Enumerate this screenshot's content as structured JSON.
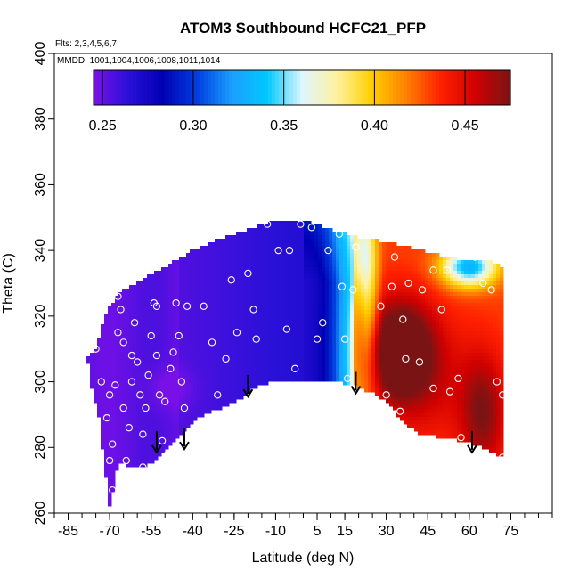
{
  "chart_data": {
    "type": "heatmap",
    "title": "ATOM3 Southbound HCFC21_PFP",
    "flights_note": "Flts: 2,3,4,5,6,7",
    "mmdd_note": "MMDD: 1001,1004,1006,1008,1011,1014",
    "xlabel": "Latitude (deg N)",
    "ylabel": "Theta (C)",
    "xlim": [
      -90,
      90
    ],
    "ylim": [
      260,
      400
    ],
    "x_ticks": [
      -85,
      -70,
      -55,
      -40,
      -25,
      -10,
      5,
      15,
      30,
      45,
      60,
      75
    ],
    "x_tick_labels": [
      "-85",
      "-70",
      "-55",
      "-40",
      "-25",
      "-10",
      "5",
      "15",
      "30",
      "45",
      "60",
      "75"
    ],
    "y_ticks": [
      260,
      280,
      300,
      320,
      340,
      360,
      380,
      400
    ],
    "y_tick_labels": [
      "260",
      "280",
      "300",
      "320",
      "340",
      "360",
      "380",
      "400"
    ],
    "colorbar": {
      "range": [
        0.245,
        0.475
      ],
      "ticks": [
        0.25,
        0.3,
        0.35,
        0.4,
        0.45
      ],
      "tick_labels": [
        "0.25",
        "0.30",
        "0.35",
        "0.40",
        "0.45"
      ],
      "colors": [
        "#7a10e8",
        "#2a10d8",
        "#0000b4",
        "#0040e0",
        "#1aa0ff",
        "#00c8ff",
        "#ddf6ff",
        "#fff2a0",
        "#ffd000",
        "#ff8000",
        "#ff2000",
        "#d00000",
        "#7a1414"
      ]
    },
    "domain_boundary": [
      [
        -75,
        310
      ],
      [
        -72,
        320
      ],
      [
        -66,
        328
      ],
      [
        -60,
        330
      ],
      [
        -55,
        333
      ],
      [
        -48,
        336
      ],
      [
        -40,
        340
      ],
      [
        -32,
        343
      ],
      [
        -25,
        345
      ],
      [
        -18,
        347
      ],
      [
        -10,
        349
      ],
      [
        0,
        349
      ],
      [
        8,
        347
      ],
      [
        12,
        346
      ],
      [
        20,
        344
      ],
      [
        28,
        343
      ],
      [
        38,
        341
      ],
      [
        48,
        339
      ],
      [
        58,
        337
      ],
      [
        66,
        337
      ],
      [
        70,
        336
      ],
      [
        72,
        334
      ],
      [
        72,
        277
      ],
      [
        65,
        280
      ],
      [
        58,
        282
      ],
      [
        50,
        283
      ],
      [
        42,
        284
      ],
      [
        36,
        288
      ],
      [
        30,
        294
      ],
      [
        24,
        297
      ],
      [
        18,
        299
      ],
      [
        12,
        300
      ],
      [
        0,
        300
      ],
      [
        -12,
        300
      ],
      [
        -18,
        298
      ],
      [
        -24,
        294
      ],
      [
        -30,
        292
      ],
      [
        -38,
        289
      ],
      [
        -44,
        284
      ],
      [
        -50,
        279
      ],
      [
        -55,
        275
      ],
      [
        -58,
        274
      ],
      [
        -62,
        274
      ],
      [
        -66,
        275
      ],
      [
        -68,
        272
      ],
      [
        -69,
        265
      ],
      [
        -70,
        262
      ],
      [
        -72,
        275
      ],
      [
        -74,
        290
      ],
      [
        -77,
        300
      ],
      [
        -78,
        308
      ]
    ],
    "field_model": "latitude-dependent mixing ratio bands with local maxima near 20-45N and 60N at 300-310 C",
    "sample_points": [
      [
        -75,
        310
      ],
      [
        -73,
        300
      ],
      [
        -71,
        289
      ],
      [
        -70,
        296
      ],
      [
        -70,
        276
      ],
      [
        -69,
        267
      ],
      [
        -69,
        281
      ],
      [
        -68,
        299
      ],
      [
        -67,
        315
      ],
      [
        -67,
        326
      ],
      [
        -66,
        322
      ],
      [
        -65,
        312
      ],
      [
        -65,
        292
      ],
      [
        -64,
        276
      ],
      [
        -63,
        286
      ],
      [
        -62,
        300
      ],
      [
        -62,
        308
      ],
      [
        -61,
        318
      ],
      [
        -60,
        306
      ],
      [
        -59,
        296
      ],
      [
        -58,
        284
      ],
      [
        -58,
        274
      ],
      [
        -57,
        292
      ],
      [
        -56,
        302
      ],
      [
        -55,
        314
      ],
      [
        -54,
        324
      ],
      [
        -53,
        323
      ],
      [
        -53,
        308
      ],
      [
        -52,
        296
      ],
      [
        -51,
        282
      ],
      [
        -50,
        294
      ],
      [
        -49,
        278
      ],
      [
        -48,
        304
      ],
      [
        -47,
        309
      ],
      [
        -46,
        324
      ],
      [
        -45,
        314
      ],
      [
        -44,
        300
      ],
      [
        -43,
        292
      ],
      [
        -42,
        323
      ],
      [
        -36,
        323
      ],
      [
        -33,
        312
      ],
      [
        -31,
        296
      ],
      [
        -28,
        307
      ],
      [
        -26,
        331
      ],
      [
        -24,
        315
      ],
      [
        -22,
        292
      ],
      [
        -20,
        333
      ],
      [
        -18,
        322
      ],
      [
        -17,
        313
      ],
      [
        -13,
        348
      ],
      [
        -9,
        340
      ],
      [
        -6,
        316
      ],
      [
        -5,
        340
      ],
      [
        -3,
        304
      ],
      [
        -1,
        348
      ],
      [
        3,
        347
      ],
      [
        5,
        313
      ],
      [
        7,
        318
      ],
      [
        9,
        340
      ],
      [
        13,
        345
      ],
      [
        14,
        329
      ],
      [
        15,
        313
      ],
      [
        16,
        301
      ],
      [
        18,
        328
      ],
      [
        19,
        341
      ],
      [
        28,
        323
      ],
      [
        30,
        296
      ],
      [
        32,
        329
      ],
      [
        33,
        338
      ],
      [
        35,
        291
      ],
      [
        36,
        319
      ],
      [
        37,
        307
      ],
      [
        38,
        330
      ],
      [
        42,
        306
      ],
      [
        43,
        328
      ],
      [
        45,
        341
      ],
      [
        47,
        334
      ],
      [
        47,
        298
      ],
      [
        50,
        322
      ],
      [
        52,
        334
      ],
      [
        53,
        297
      ],
      [
        56,
        301
      ],
      [
        57,
        283
      ],
      [
        62,
        338
      ],
      [
        65,
        330
      ],
      [
        68,
        328
      ],
      [
        70,
        300
      ],
      [
        72,
        277
      ],
      [
        72,
        296
      ]
    ],
    "arrows_lat": [
      -53,
      -43,
      -20,
      19,
      61
    ],
    "arrows_theta": [
      285,
      286,
      302,
      303,
      285
    ]
  }
}
